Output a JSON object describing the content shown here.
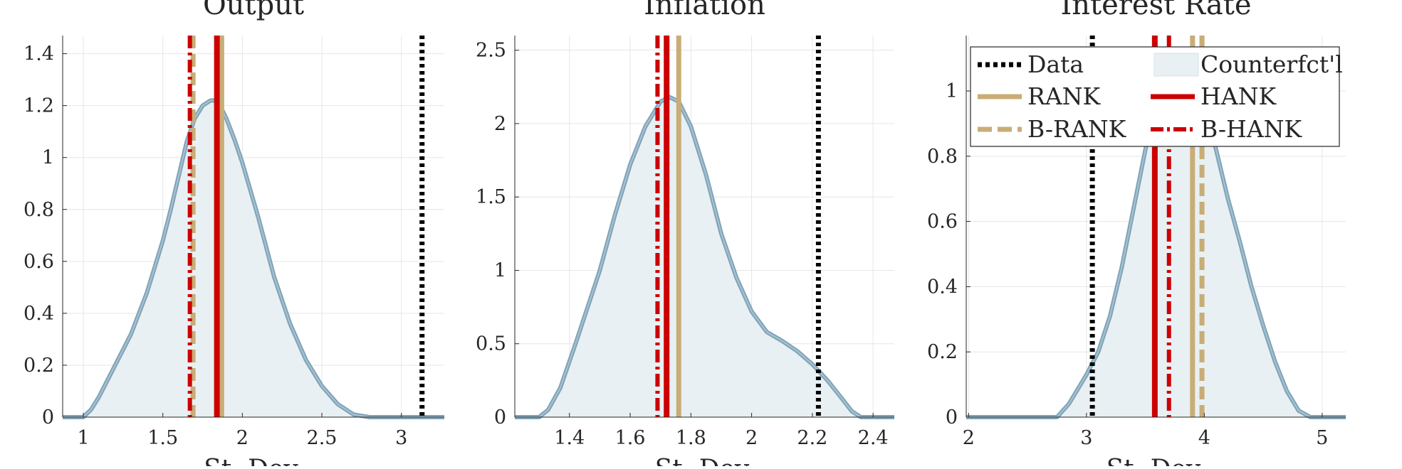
{
  "figure": {
    "legend": {
      "entries": [
        {
          "label": "Data",
          "style": "dotted",
          "color": "#000000"
        },
        {
          "label": "Counterfct'l",
          "style": "patch",
          "color": "#e8f0f3"
        },
        {
          "label": "RANK",
          "style": "solid",
          "color": "#c8ad77"
        },
        {
          "label": "HANK",
          "style": "solid",
          "color": "#cc0000"
        },
        {
          "label": "B-RANK",
          "style": "dashed",
          "color": "#c8ad77"
        },
        {
          "label": "B-HANK",
          "style": "dashdot",
          "color": "#cc0000"
        }
      ]
    },
    "colors": {
      "data": "#000000",
      "counterfactual_fill": "#e8f0f3",
      "counterfactual_line": "#7fa3b8",
      "rank": "#c8ad77",
      "hank": "#cc0000",
      "grid": "#e6e6e6",
      "axis": "#262626"
    }
  },
  "chart_data": [
    {
      "type": "area",
      "title": "Output",
      "xlabel": "St. Dev.",
      "ylabel": "",
      "xlim": [
        0.87,
        3.27
      ],
      "ylim": [
        0,
        1.47
      ],
      "xticks": [
        1,
        1.5,
        2,
        2.5,
        3
      ],
      "xtick_labels": [
        "1",
        "1.5",
        "2",
        "2.5",
        "3"
      ],
      "yticks": [
        0,
        0.2,
        0.4,
        0.6,
        0.8,
        1,
        1.2,
        1.4
      ],
      "ytick_labels": [
        "0",
        "0.2",
        "0.4",
        "0.6",
        "0.8",
        "1",
        "1.2",
        "1.4"
      ],
      "grid": true,
      "density": {
        "name": "Counterfct'l",
        "x": [
          0.87,
          1.0,
          1.05,
          1.1,
          1.15,
          1.2,
          1.3,
          1.4,
          1.5,
          1.55,
          1.6,
          1.65,
          1.7,
          1.75,
          1.8,
          1.83,
          1.86,
          1.9,
          1.95,
          2.0,
          2.1,
          2.2,
          2.3,
          2.4,
          2.5,
          2.6,
          2.7,
          2.8,
          2.85,
          3.27
        ],
        "y": [
          0,
          0,
          0.03,
          0.08,
          0.14,
          0.2,
          0.32,
          0.48,
          0.68,
          0.8,
          0.93,
          1.06,
          1.15,
          1.2,
          1.22,
          1.22,
          1.2,
          1.15,
          1.07,
          0.98,
          0.77,
          0.54,
          0.36,
          0.22,
          0.12,
          0.05,
          0.01,
          0,
          0,
          0
        ]
      },
      "vlines": [
        {
          "name": "Data",
          "x": 3.13
        },
        {
          "name": "RANK",
          "x": 1.87
        },
        {
          "name": "HANK",
          "x": 1.84
        },
        {
          "name": "B-RANK",
          "x": 1.69
        },
        {
          "name": "B-HANK",
          "x": 1.67
        }
      ]
    },
    {
      "type": "area",
      "title": "Inflation",
      "xlabel": "St. Dev.",
      "ylabel": "",
      "xlim": [
        1.22,
        2.47
      ],
      "ylim": [
        0,
        2.6
      ],
      "xticks": [
        1.4,
        1.6,
        1.8,
        2,
        2.2,
        2.4
      ],
      "xtick_labels": [
        "1.4",
        "1.6",
        "1.8",
        "2",
        "2.2",
        "2.4"
      ],
      "yticks": [
        0,
        0.5,
        1,
        1.5,
        2,
        2.5
      ],
      "ytick_labels": [
        "0",
        "0.5",
        "1",
        "1.5",
        "2",
        "2.5"
      ],
      "grid": true,
      "density": {
        "name": "Counterfct'l",
        "x": [
          1.22,
          1.3,
          1.33,
          1.37,
          1.42,
          1.5,
          1.55,
          1.6,
          1.65,
          1.7,
          1.73,
          1.76,
          1.8,
          1.85,
          1.9,
          1.95,
          2.0,
          2.05,
          2.1,
          2.15,
          2.2,
          2.25,
          2.3,
          2.33,
          2.36,
          2.47
        ],
        "y": [
          0,
          0,
          0.05,
          0.2,
          0.5,
          1.0,
          1.38,
          1.72,
          1.98,
          2.15,
          2.18,
          2.15,
          1.98,
          1.65,
          1.25,
          0.95,
          0.72,
          0.58,
          0.52,
          0.45,
          0.36,
          0.25,
          0.12,
          0.04,
          0,
          0
        ]
      },
      "vlines": [
        {
          "name": "Data",
          "x": 2.22
        },
        {
          "name": "RANK",
          "x": 1.76
        },
        {
          "name": "HANK",
          "x": 1.72
        },
        {
          "name": "B-RANK",
          "x": 1.72
        },
        {
          "name": "B-HANK",
          "x": 1.69
        }
      ]
    },
    {
      "type": "area",
      "title": "Interest Rate",
      "xlabel": "St. Dev.",
      "ylabel": "",
      "xlim": [
        1.98,
        5.2
      ],
      "ylim": [
        0,
        1.17
      ],
      "xticks": [
        2,
        3,
        4,
        5
      ],
      "xtick_labels": [
        "2",
        "3",
        "4",
        "5"
      ],
      "yticks": [
        0,
        0.2,
        0.4,
        0.6,
        0.8,
        1
      ],
      "ytick_labels": [
        "0",
        "0.2",
        "0.4",
        "0.6",
        "0.8",
        "1"
      ],
      "grid": true,
      "legend_position": "top",
      "density": {
        "name": "Counterfct'l",
        "x": [
          1.98,
          2.75,
          2.85,
          3.0,
          3.1,
          3.2,
          3.3,
          3.4,
          3.5,
          3.6,
          3.7,
          3.8,
          3.9,
          4.0,
          4.1,
          4.2,
          4.3,
          4.4,
          4.5,
          4.6,
          4.7,
          4.8,
          4.9,
          5.0,
          5.2
        ],
        "y": [
          0,
          0,
          0.04,
          0.13,
          0.2,
          0.31,
          0.46,
          0.64,
          0.82,
          0.97,
          1.07,
          1.1,
          1.06,
          0.96,
          0.82,
          0.67,
          0.54,
          0.4,
          0.28,
          0.17,
          0.08,
          0.02,
          0,
          0,
          0
        ]
      },
      "vlines": [
        {
          "name": "Data",
          "x": 3.05
        },
        {
          "name": "RANK",
          "x": 3.9
        },
        {
          "name": "HANK",
          "x": 3.58
        },
        {
          "name": "B-RANK",
          "x": 3.98
        },
        {
          "name": "B-HANK",
          "x": 3.7
        }
      ]
    }
  ]
}
